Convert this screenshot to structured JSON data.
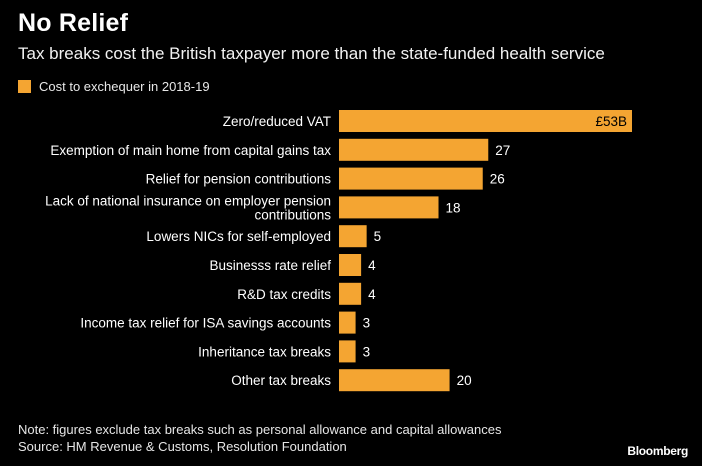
{
  "header": {
    "title": "No Relief",
    "subtitle": "Tax breaks cost the British taxpayer more than the state-funded health service",
    "legend_label": "Cost to exchequer in 2018-19"
  },
  "footer": {
    "note": "Note: figures exclude tax breaks such as personal allowance and capital allowances",
    "source": "Source: HM Revenue & Customs, Resolution Foundation",
    "brand": "Bloomberg"
  },
  "colors": {
    "bar": "#f4a532",
    "background": "#000000",
    "text": "#ffffff"
  },
  "chart_data": {
    "type": "bar",
    "orientation": "horizontal",
    "title": "No Relief",
    "subtitle": "Tax breaks cost the British taxpayer more than the state-funded health service",
    "xlim": [
      0,
      53
    ],
    "grid": false,
    "legend_position": "top-left",
    "series": [
      {
        "name": "Cost to exchequer in 2018-19"
      }
    ],
    "categories": [
      [
        "Zero/reduced VAT"
      ],
      [
        "Exemption of main home from capital gains tax"
      ],
      [
        "Relief for pension contributions"
      ],
      [
        "Lack of national insurance on employer pension",
        "contributions"
      ],
      [
        "Lowers NICs for self-employed"
      ],
      [
        "Businesss rate relief"
      ],
      [
        "R&D tax credits"
      ],
      [
        "Income tax relief for ISA savings accounts"
      ],
      [
        "Inheritance tax breaks"
      ],
      [
        "Other tax breaks"
      ]
    ],
    "values": [
      53,
      27,
      26,
      18,
      5,
      4,
      4,
      3,
      3,
      20
    ],
    "value_labels": [
      "£53B",
      "27",
      "26",
      "18",
      "5",
      "4",
      "4",
      "3",
      "3",
      "20"
    ]
  }
}
